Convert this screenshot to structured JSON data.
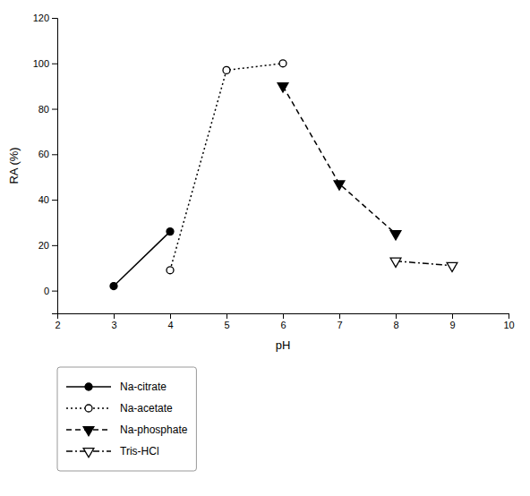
{
  "chart_data": {
    "type": "line",
    "xlabel": "pH",
    "ylabel": "RA (%)",
    "xlim": [
      2,
      10
    ],
    "ylim": [
      -10,
      120
    ],
    "xticks": [
      2,
      3,
      4,
      5,
      6,
      7,
      8,
      9,
      10
    ],
    "yticks": [
      0,
      20,
      40,
      60,
      80,
      100,
      120
    ],
    "legend": "lower left",
    "series": [
      {
        "name": "Na-citrate",
        "color": "#000000",
        "marker": "circle",
        "line_style": "solid",
        "x": [
          3,
          4
        ],
        "values": [
          2,
          26
        ]
      },
      {
        "name": "Na-acetate",
        "color": "#000000",
        "marker": "circle-open",
        "line_style": "dotted",
        "x": [
          4,
          5,
          6
        ],
        "values": [
          9,
          97,
          100
        ]
      },
      {
        "name": "Na-phosphate",
        "color": "#000000",
        "marker": "triangle-down",
        "line_style": "dashed",
        "x": [
          6,
          7,
          8
        ],
        "values": [
          90,
          47,
          25
        ]
      },
      {
        "name": "Tris-HCl",
        "color": "#000000",
        "marker": "triangle-down-open",
        "line_style": "dashdot",
        "x": [
          8,
          9
        ],
        "values": [
          13,
          11
        ]
      }
    ]
  }
}
